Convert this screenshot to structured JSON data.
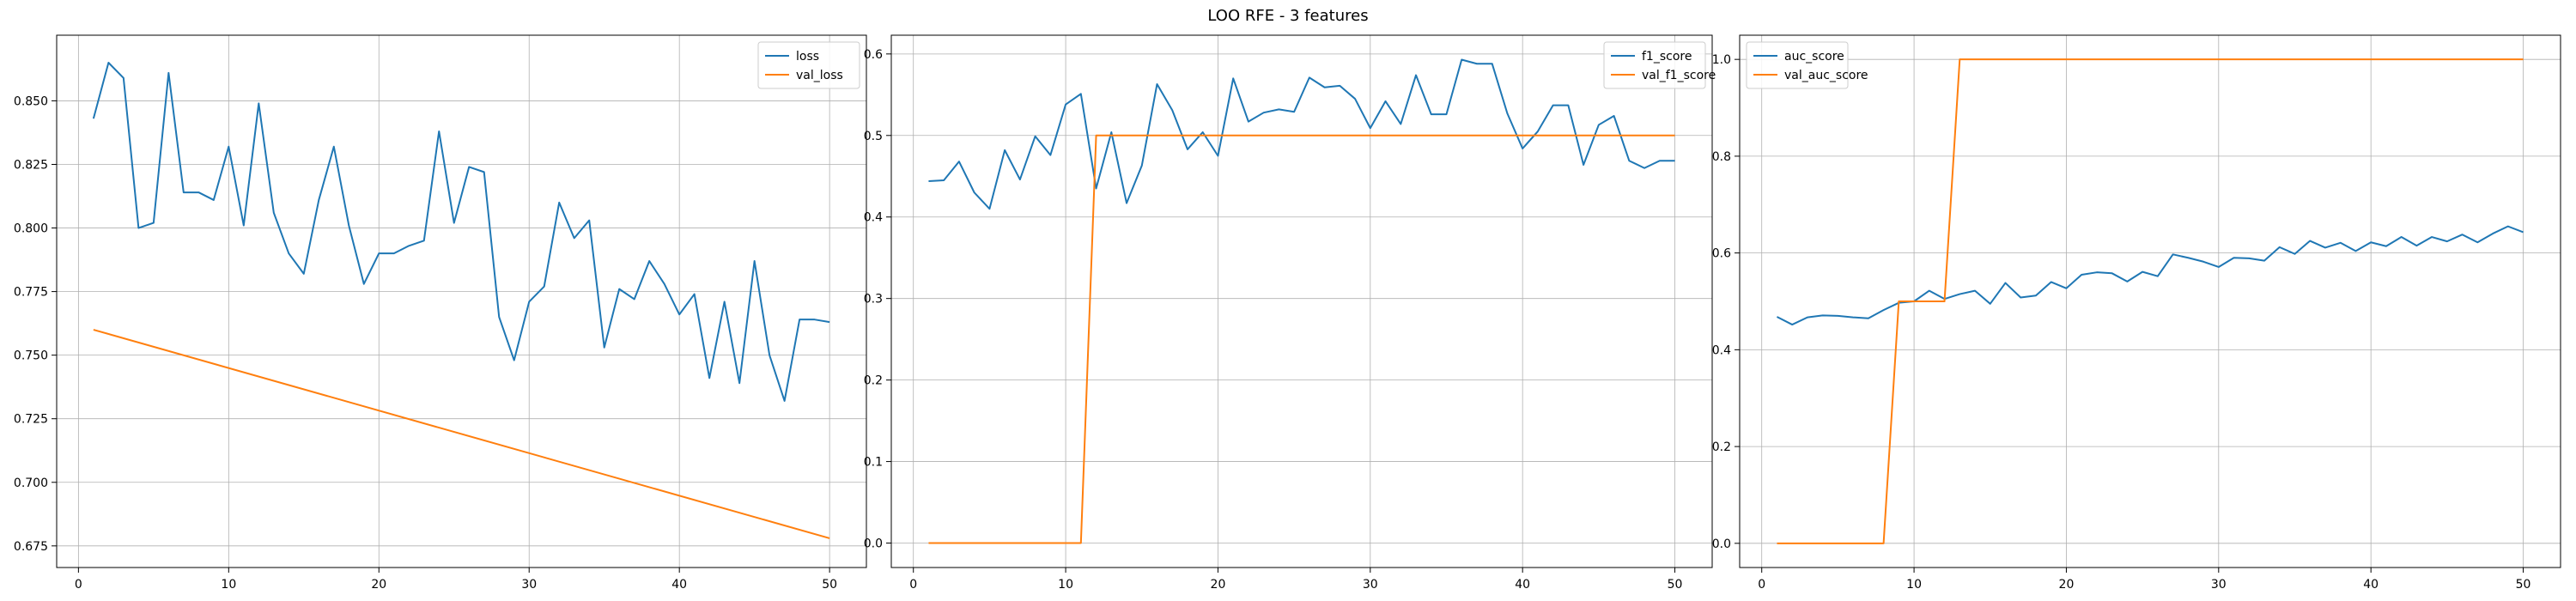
{
  "figure": {
    "title": "LOO RFE - 3 features"
  },
  "chart_data": [
    {
      "type": "line",
      "title": "",
      "xlabel": "",
      "ylabel": "",
      "xlim": [
        -1.45,
        52.45
      ],
      "ylim": [
        0.6665,
        0.8758
      ],
      "xticks": [
        0,
        10,
        20,
        30,
        40,
        50
      ],
      "yticks": [
        0.675,
        0.7,
        0.725,
        0.75,
        0.775,
        0.8,
        0.825,
        0.85
      ],
      "ytick_labels": [
        "0.675",
        "0.700",
        "0.725",
        "0.750",
        "0.775",
        "0.800",
        "0.825",
        "0.850"
      ],
      "grid": true,
      "legend": "upper right",
      "series": [
        {
          "name": "loss",
          "color": "#1f77b4",
          "x": [
            1,
            2,
            3,
            4,
            5,
            6,
            7,
            8,
            9,
            10,
            11,
            12,
            13,
            14,
            15,
            16,
            17,
            18,
            19,
            20,
            21,
            22,
            23,
            24,
            25,
            26,
            27,
            28,
            29,
            30,
            31,
            32,
            33,
            34,
            35,
            36,
            37,
            38,
            39,
            40,
            41,
            42,
            43,
            44,
            45,
            46,
            47,
            48,
            49,
            50
          ],
          "values": [
            0.843,
            0.865,
            0.859,
            0.8,
            0.802,
            0.861,
            0.814,
            0.814,
            0.811,
            0.832,
            0.801,
            0.849,
            0.806,
            0.79,
            0.782,
            0.811,
            0.832,
            0.801,
            0.778,
            0.79,
            0.79,
            0.793,
            0.795,
            0.838,
            0.802,
            0.824,
            0.822,
            0.765,
            0.748,
            0.771,
            0.777,
            0.81,
            0.796,
            0.803,
            0.753,
            0.776,
            0.772,
            0.787,
            0.778,
            0.766,
            0.774,
            0.741,
            0.771,
            0.739,
            0.787,
            0.75,
            0.732,
            0.764,
            0.764,
            0.763
          ]
        },
        {
          "name": "val_loss",
          "color": "#ff7f0e",
          "x": [
            1,
            50
          ],
          "values": [
            0.76,
            0.678
          ]
        }
      ]
    },
    {
      "type": "line",
      "title": "",
      "xlabel": "",
      "ylabel": "",
      "xlim": [
        -1.45,
        52.45
      ],
      "ylim": [
        -0.03,
        0.623
      ],
      "xticks": [
        0,
        10,
        20,
        30,
        40,
        50
      ],
      "yticks": [
        0.0,
        0.1,
        0.2,
        0.3,
        0.4,
        0.5,
        0.6
      ],
      "ytick_labels": [
        "0.0",
        "0.1",
        "0.2",
        "0.3",
        "0.4",
        "0.5",
        "0.6"
      ],
      "grid": true,
      "legend": "upper right",
      "series": [
        {
          "name": "f1_score",
          "color": "#1f77b4",
          "x": [
            1,
            2,
            3,
            4,
            5,
            6,
            7,
            8,
            9,
            10,
            11,
            12,
            13,
            14,
            15,
            16,
            17,
            18,
            19,
            20,
            21,
            22,
            23,
            24,
            25,
            26,
            27,
            28,
            29,
            30,
            31,
            32,
            33,
            34,
            35,
            36,
            37,
            38,
            39,
            40,
            41,
            42,
            43,
            44,
            45,
            46,
            47,
            48,
            49,
            50
          ],
          "values": [
            0.444,
            0.445,
            0.468,
            0.43,
            0.41,
            0.482,
            0.446,
            0.499,
            0.476,
            0.538,
            0.551,
            0.435,
            0.504,
            0.417,
            0.463,
            0.563,
            0.531,
            0.483,
            0.504,
            0.475,
            0.57,
            0.517,
            0.528,
            0.532,
            0.529,
            0.571,
            0.559,
            0.561,
            0.545,
            0.509,
            0.542,
            0.514,
            0.574,
            0.526,
            0.526,
            0.593,
            0.588,
            0.588,
            0.527,
            0.484,
            0.505,
            0.537,
            0.537,
            0.464,
            0.513,
            0.524,
            0.469,
            0.46,
            0.469,
            0.469
          ]
        },
        {
          "name": "val_f1_score",
          "color": "#ff7f0e",
          "x": [
            1,
            11,
            12,
            50
          ],
          "values": [
            0.0,
            0.0,
            0.5,
            0.5
          ]
        }
      ]
    },
    {
      "type": "line",
      "title": "",
      "xlabel": "",
      "ylabel": "",
      "xlim": [
        -1.45,
        52.45
      ],
      "ylim": [
        -0.05,
        1.05
      ],
      "xticks": [
        0,
        10,
        20,
        30,
        40,
        50
      ],
      "yticks": [
        0.0,
        0.2,
        0.4,
        0.6,
        0.8,
        1.0
      ],
      "ytick_labels": [
        "0.0",
        "0.2",
        "0.4",
        "0.6",
        "0.8",
        "1.0"
      ],
      "grid": true,
      "legend": "upper left",
      "series": [
        {
          "name": "auc_score",
          "color": "#1f77b4",
          "x": [
            1,
            2,
            3,
            4,
            5,
            6,
            7,
            8,
            9,
            10,
            11,
            12,
            13,
            14,
            15,
            16,
            17,
            18,
            19,
            20,
            21,
            22,
            23,
            24,
            25,
            26,
            27,
            28,
            29,
            30,
            31,
            32,
            33,
            34,
            35,
            36,
            37,
            38,
            39,
            40,
            41,
            42,
            43,
            44,
            45,
            46,
            47,
            48,
            49,
            50
          ],
          "values": [
            0.468,
            0.452,
            0.467,
            0.471,
            0.47,
            0.467,
            0.465,
            0.482,
            0.497,
            0.5,
            0.522,
            0.505,
            0.515,
            0.522,
            0.495,
            0.538,
            0.508,
            0.512,
            0.54,
            0.527,
            0.555,
            0.56,
            0.558,
            0.541,
            0.561,
            0.552,
            0.597,
            0.59,
            0.582,
            0.571,
            0.59,
            0.589,
            0.584,
            0.612,
            0.598,
            0.625,
            0.611,
            0.621,
            0.604,
            0.622,
            0.614,
            0.633,
            0.615,
            0.633,
            0.624,
            0.638,
            0.622,
            0.64,
            0.655,
            0.643
          ]
        },
        {
          "name": "val_auc_score",
          "color": "#ff7f0e",
          "x": [
            1,
            8,
            9,
            12,
            13,
            50
          ],
          "values": [
            0.0,
            0.0,
            0.5,
            0.5,
            1.0,
            1.0
          ]
        }
      ]
    }
  ]
}
